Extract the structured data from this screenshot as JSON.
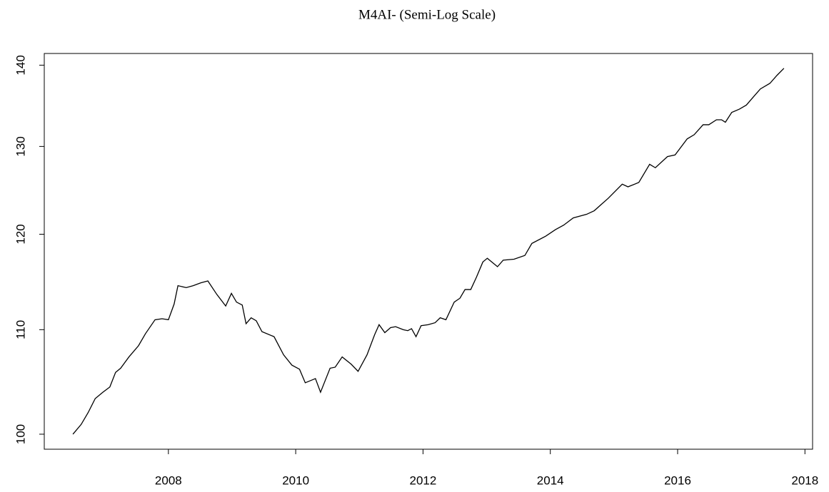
{
  "chart_data": {
    "type": "line",
    "title": "M4AI- (Semi-Log Scale)",
    "log_scale_y": true,
    "color": "#000000",
    "x": [
      2006.5,
      2006.63,
      2006.74,
      2006.85,
      2006.97,
      2007.08,
      2007.17,
      2007.25,
      2007.38,
      2007.53,
      2007.64,
      2007.79,
      2007.9,
      2008.0,
      2008.09,
      2008.15,
      2008.28,
      2008.39,
      2008.51,
      2008.62,
      2008.76,
      2008.9,
      2008.99,
      2009.07,
      2009.16,
      2009.22,
      2009.3,
      2009.38,
      2009.47,
      2009.66,
      2009.81,
      2009.94,
      2010.06,
      2010.15,
      2010.31,
      2010.39,
      2010.54,
      2010.62,
      2010.73,
      2010.87,
      2010.98,
      2011.12,
      2011.24,
      2011.31,
      2011.4,
      2011.49,
      2011.57,
      2011.69,
      2011.76,
      2011.82,
      2011.89,
      2011.97,
      2012.08,
      2012.19,
      2012.27,
      2012.36,
      2012.49,
      2012.58,
      2012.66,
      2012.75,
      2012.84,
      2012.94,
      2013.01,
      2013.17,
      2013.26,
      2013.43,
      2013.6,
      2013.71,
      2013.93,
      2014.08,
      2014.21,
      2014.36,
      2014.57,
      2014.69,
      2014.8,
      2014.91,
      2015.13,
      2015.22,
      2015.39,
      2015.56,
      2015.65,
      2015.84,
      2015.96,
      2016.15,
      2016.26,
      2016.4,
      2016.49,
      2016.61,
      2016.69,
      2016.75,
      2016.85,
      2016.97,
      2017.08,
      2017.19,
      2017.3,
      2017.45,
      2017.56,
      2017.67
    ],
    "values": [
      100.0,
      100.9,
      102.0,
      103.3,
      103.9,
      104.4,
      105.8,
      106.2,
      107.3,
      108.4,
      109.6,
      111.0,
      111.1,
      111.0,
      112.6,
      114.5,
      114.3,
      114.5,
      114.8,
      115.0,
      113.6,
      112.4,
      113.7,
      112.8,
      112.5,
      110.6,
      111.2,
      110.9,
      109.8,
      109.3,
      107.5,
      106.5,
      106.1,
      104.8,
      105.2,
      103.9,
      106.2,
      106.3,
      107.3,
      106.6,
      105.9,
      107.5,
      109.5,
      110.5,
      109.7,
      110.2,
      110.3,
      110.0,
      109.9,
      110.1,
      109.3,
      110.4,
      110.5,
      110.7,
      111.2,
      111.0,
      112.8,
      113.2,
      114.1,
      114.1,
      115.4,
      117.0,
      117.4,
      116.5,
      117.2,
      117.3,
      117.7,
      119.0,
      119.8,
      120.5,
      121.0,
      121.8,
      122.2,
      122.6,
      123.3,
      124.0,
      125.6,
      125.3,
      125.8,
      127.9,
      127.5,
      128.8,
      129.0,
      130.9,
      131.4,
      132.6,
      132.6,
      133.2,
      133.2,
      132.9,
      134.1,
      134.5,
      135.0,
      136.0,
      137.0,
      137.7,
      138.7,
      139.6
    ],
    "xlim": [
      2006.05,
      2018.12
    ],
    "xticks": [
      2008,
      2010,
      2012,
      2014,
      2016,
      2018
    ],
    "ylim": [
      98.64,
      141.5
    ],
    "yticks": [
      100,
      110,
      120,
      130,
      140
    ]
  }
}
